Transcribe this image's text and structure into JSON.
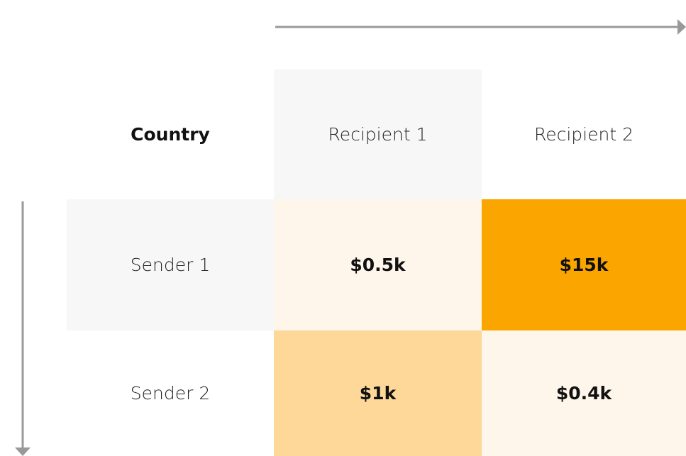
{
  "table": {
    "header": [
      "Country",
      "Recipient 1",
      "Recipient 2"
    ],
    "header_colors": [
      "#ffffff",
      "#f7f7f7",
      "#ffffff"
    ],
    "rows": [
      [
        "Sender 1",
        "$0.5k",
        "$15k"
      ],
      [
        "Sender 2",
        "$1k",
        "$0.4k"
      ]
    ],
    "row_colors": [
      [
        "#f7f7f7",
        "#fef6ea",
        "#fba500"
      ],
      [
        "#ffffff",
        "#fdd898",
        "#fef6ea"
      ]
    ]
  }
}
